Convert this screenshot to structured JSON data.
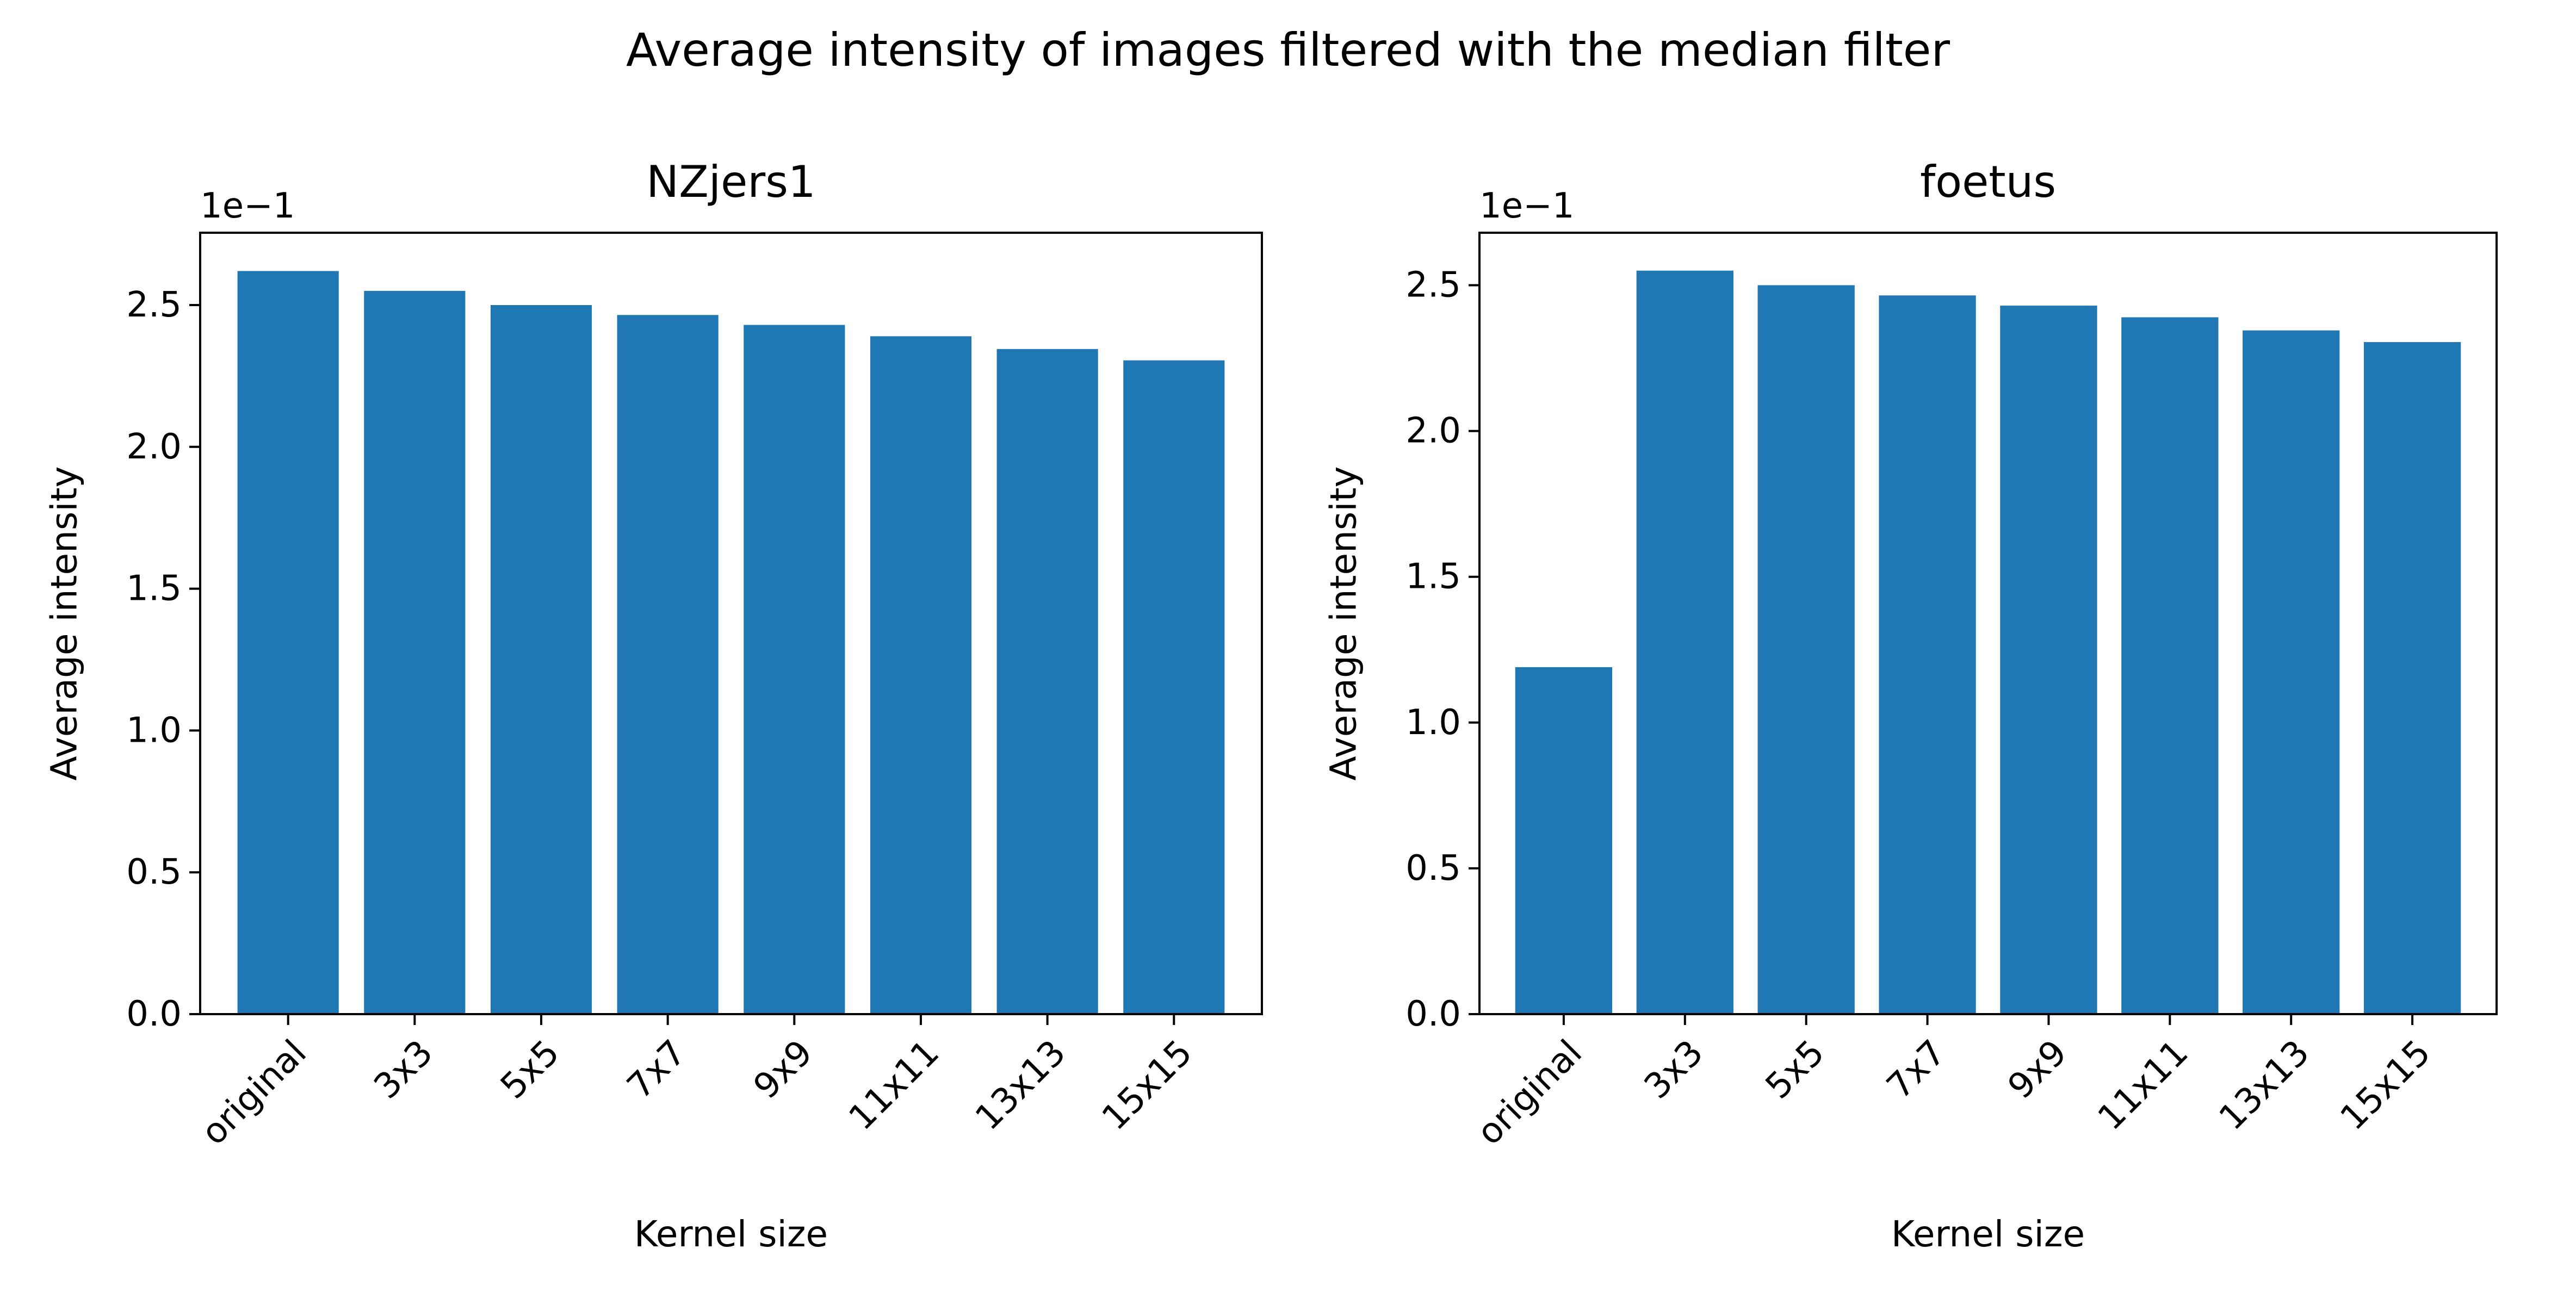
{
  "figure": {
    "title": "Average intensity of images filtered with the median filter"
  },
  "chart_data": [
    {
      "type": "bar",
      "title": "NZjers1",
      "xlabel": "Kernel size",
      "ylabel": "Average intensity",
      "offset_text": "1e−1",
      "categories": [
        "original",
        "3x3",
        "5x5",
        "7x7",
        "9x9",
        "11x11",
        "13x13",
        "15x15"
      ],
      "values": [
        2.62,
        2.55,
        2.5,
        2.465,
        2.43,
        2.39,
        2.345,
        2.305
      ],
      "ylim": [
        0,
        2.755
      ],
      "yticks": [
        0.0,
        0.5,
        1.0,
        1.5,
        2.0,
        2.5
      ],
      "ytick_labels": [
        "0.0",
        "0.5",
        "1.0",
        "1.5",
        "2.0",
        "2.5"
      ],
      "bar_color": "#1f77b4",
      "grid": false
    },
    {
      "type": "bar",
      "title": "foetus",
      "xlabel": "Kernel size",
      "ylabel": "Average intensity",
      "offset_text": "1e−1",
      "categories": [
        "original",
        "3x3",
        "5x5",
        "7x7",
        "9x9",
        "11x11",
        "13x13",
        "15x15"
      ],
      "values": [
        1.19,
        2.55,
        2.5,
        2.465,
        2.43,
        2.39,
        2.345,
        2.305
      ],
      "ylim": [
        0,
        2.68
      ],
      "yticks": [
        0.0,
        0.5,
        1.0,
        1.5,
        2.0,
        2.5
      ],
      "ytick_labels": [
        "0.0",
        "0.5",
        "1.0",
        "1.5",
        "2.0",
        "2.5"
      ],
      "bar_color": "#1f77b4",
      "grid": false
    }
  ]
}
